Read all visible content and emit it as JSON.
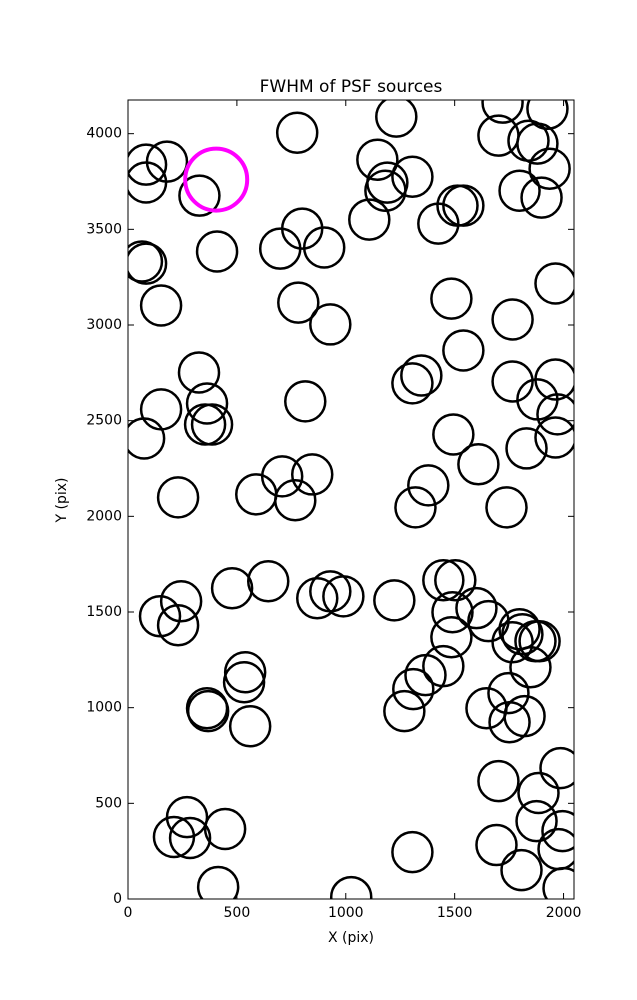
{
  "chart_data": {
    "type": "scatter",
    "title": "FWHM of PSF sources",
    "x_label": "X (pix)",
    "y_label": "Y (pix)",
    "xlim": [
      0,
      2048
    ],
    "ylim": [
      0,
      4176
    ],
    "xticks": [
      0,
      500,
      1000,
      1500,
      2000
    ],
    "yticks": [
      0,
      500,
      1000,
      1500,
      2000,
      2500,
      3000,
      3500,
      4000
    ],
    "series": [
      {
        "color": "#000000",
        "x": [
          83,
          83,
          179,
          328,
          777,
          1232,
          1720,
          1926,
          1701,
          1839,
          1880,
          1936,
          1798,
          1899,
          1145,
          1182,
          1191,
          1306,
          1108,
          1425,
          1513,
          1540,
          800,
          901,
          699,
          409,
          64,
          83,
          152,
          782,
          929,
          1963,
          1485,
          1766,
          1540,
          326,
          363,
          354,
          386,
          152,
          74,
          814,
          1347,
          1306,
          1766,
          1963,
          1880,
          1972,
          1963,
          1830,
          1494,
          1609,
          1379,
          1320,
          1738,
          230,
          589,
          708,
          768,
          846,
          147,
          244,
          230,
          478,
          644,
          869,
          929,
          989,
          1223,
          1448,
          1503,
          1490,
          1600,
          1655,
          1798,
          1811,
          1766,
          1871,
          1890,
          1848,
          1485,
          1448,
          1366,
          1310,
          1269,
          1747,
          1646,
          1752,
          1821,
          538,
          533,
          363,
          368,
          561,
          1986,
          1701,
          1885,
          1876,
          1995,
          1977,
          2000,
          1692,
          1807,
          1306,
          1025,
          414,
          446,
          271,
          211,
          285
        ],
        "y": [
          3838,
          3745,
          3854,
          3676,
          4005,
          4089,
          4162,
          4130,
          3990,
          3963,
          3948,
          3817,
          3702,
          3666,
          3864,
          3702,
          3744,
          3775,
          3551,
          3530,
          3624,
          3624,
          3504,
          3405,
          3399,
          3384,
          3332,
          3321,
          3102,
          3117,
          3003,
          3217,
          3138,
          3029,
          2867,
          2752,
          2590,
          2480,
          2480,
          2559,
          2407,
          2601,
          2736,
          2695,
          2705,
          2715,
          2611,
          2533,
          2412,
          2355,
          2428,
          2272,
          2162,
          2047,
          2047,
          2099,
          2115,
          2209,
          2084,
          2219,
          1478,
          1556,
          1431,
          1624,
          1661,
          1572,
          1608,
          1582,
          1561,
          1666,
          1666,
          1499,
          1520,
          1452,
          1410,
          1384,
          1342,
          1347,
          1347,
          1211,
          1368,
          1217,
          1170,
          1097,
          982,
          1076,
          997,
          924,
          956,
          1185,
          1133,
          997,
          982,
          903,
          684,
          616,
          554,
          407,
          355,
          261,
          57,
          282,
          151,
          245,
          10,
          63,
          366,
          428,
          324,
          319
        ]
      },
      {
        "color": "#ff00ff",
        "x": [
          405
        ],
        "y": [
          3760
        ]
      }
    ]
  }
}
